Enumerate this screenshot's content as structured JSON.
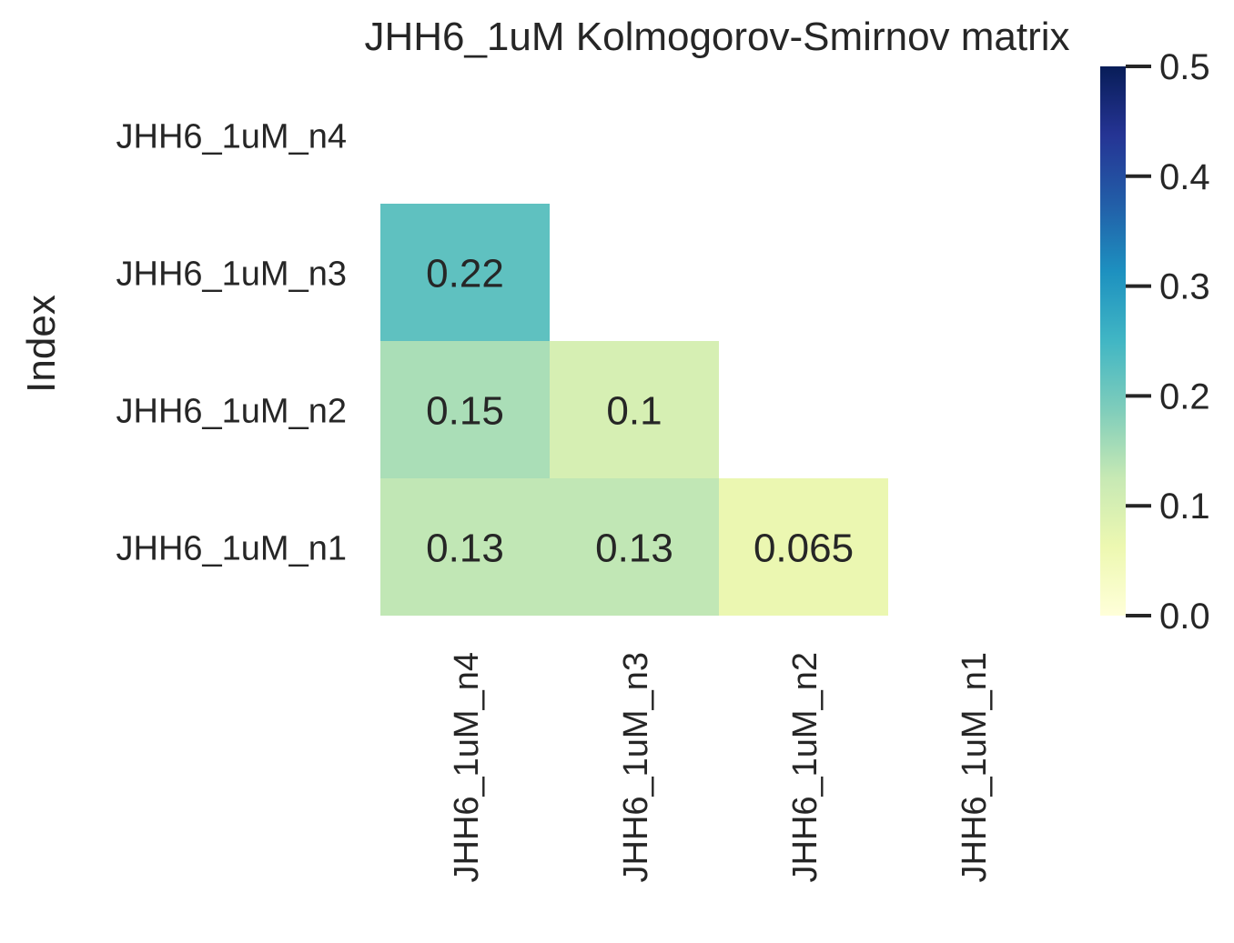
{
  "chart_data": {
    "type": "heatmap",
    "title": "JHH6_1uM Kolmogorov-Smirnov matrix",
    "ylabel": "Index",
    "xlabel": "",
    "rows": [
      "JHH6_1uM_n4",
      "JHH6_1uM_n3",
      "JHH6_1uM_n2",
      "JHH6_1uM_n1"
    ],
    "columns": [
      "JHH6_1uM_n4",
      "JHH6_1uM_n3",
      "JHH6_1uM_n2",
      "JHH6_1uM_n1"
    ],
    "cells": [
      {
        "row": "JHH6_1uM_n3",
        "col": "JHH6_1uM_n4",
        "value": 0.22,
        "label": "0.22"
      },
      {
        "row": "JHH6_1uM_n2",
        "col": "JHH6_1uM_n4",
        "value": 0.15,
        "label": "0.15"
      },
      {
        "row": "JHH6_1uM_n2",
        "col": "JHH6_1uM_n3",
        "value": 0.1,
        "label": "0.1"
      },
      {
        "row": "JHH6_1uM_n1",
        "col": "JHH6_1uM_n4",
        "value": 0.13,
        "label": "0.13"
      },
      {
        "row": "JHH6_1uM_n1",
        "col": "JHH6_1uM_n3",
        "value": 0.13,
        "label": "0.13"
      },
      {
        "row": "JHH6_1uM_n1",
        "col": "JHH6_1uM_n2",
        "value": 0.065,
        "label": "0.065"
      }
    ],
    "colorbar": {
      "colormap": "YlGnBu",
      "range": [
        0.0,
        0.5
      ],
      "ticks": [
        0.0,
        0.1,
        0.2,
        0.3,
        0.4,
        0.5
      ],
      "tick_labels": [
        "0.0",
        "0.1",
        "0.2",
        "0.3",
        "0.4",
        "0.5"
      ]
    },
    "grid": false,
    "mask": "upper triangle and diagonal hidden"
  }
}
